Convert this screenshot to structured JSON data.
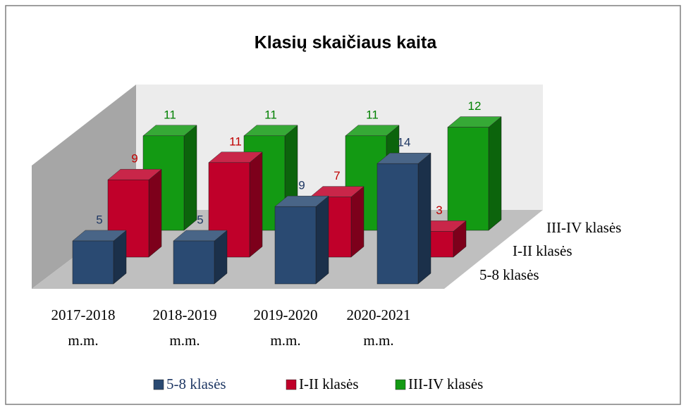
{
  "chart_data": {
    "type": "bar3d",
    "title": "Klasių skaičiaus kaita",
    "categories": [
      "2017-2018 m.m.",
      "2018-2019 m.m.",
      "2019-2020 m.m.",
      "2020-2021 m.m."
    ],
    "series": [
      {
        "name": "5-8 klasės",
        "color": "#2a4a72",
        "label_color": "#1f3864",
        "values": [
          5,
          5,
          9,
          14
        ]
      },
      {
        "name": "I-II klasės",
        "color": "#c0002a",
        "label_color": "#c00000",
        "values": [
          9,
          11,
          7,
          3
        ]
      },
      {
        "name": "III-IV klasės",
        "color": "#139a13",
        "label_color": "#008000",
        "values": [
          11,
          11,
          11,
          12
        ]
      }
    ],
    "legend": "bottom"
  }
}
